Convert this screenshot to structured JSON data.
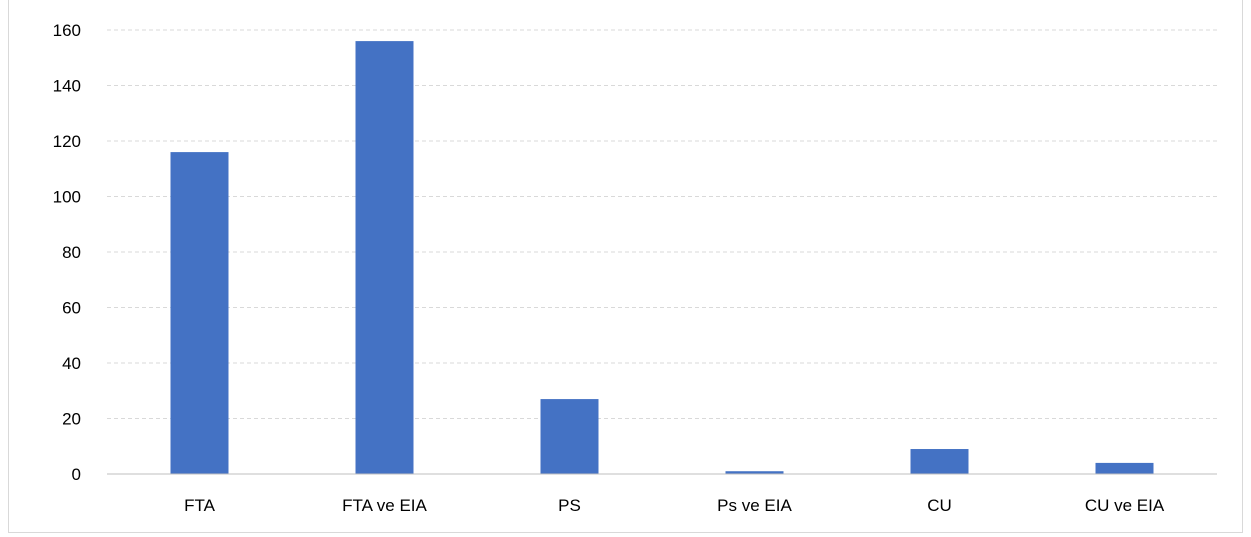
{
  "chart_data": {
    "type": "bar",
    "title": "",
    "xlabel": "",
    "ylabel": "",
    "categories": [
      "FTA",
      "FTA ve EIA",
      "PS",
      "Ps ve EIA",
      "CU",
      "CU ve EIA"
    ],
    "values": [
      116,
      156,
      27,
      1,
      9,
      4
    ],
    "ylim": [
      0,
      160
    ],
    "yticks": [
      "0",
      "20",
      "40",
      "60",
      "80",
      "100",
      "120",
      "140",
      "160"
    ],
    "grid": true,
    "grid_style": "dashed",
    "legend": "none",
    "colors": {
      "bar": "#4472C4",
      "grid": "#D9D9D9",
      "axis": "#BFBFBF"
    }
  }
}
